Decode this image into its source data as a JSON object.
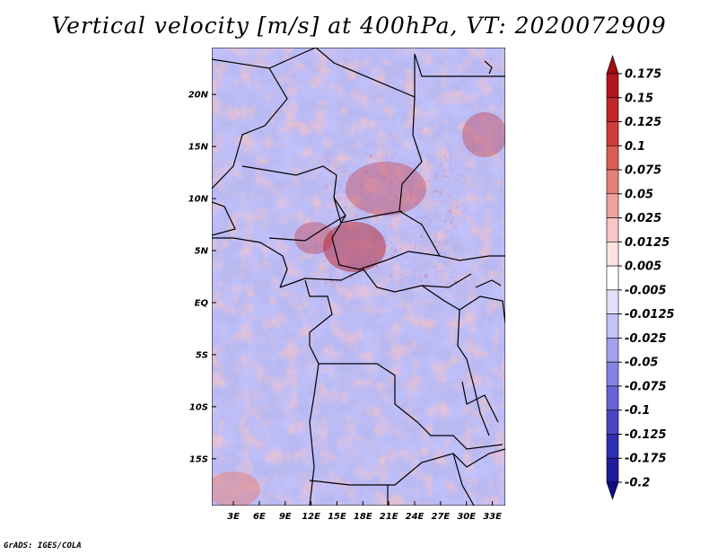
{
  "title": "Vertical velocity [m/s] at 400hPa, VT: 2020072909",
  "footer": "GrADS: IGES/COLA",
  "map": {
    "lat_labels": [
      "20N",
      "15N",
      "10N",
      "5N",
      "EQ",
      "5S",
      "10S",
      "15S"
    ],
    "lat_values": [
      20,
      15,
      10,
      5,
      0,
      -5,
      -10,
      -15
    ],
    "lon_labels": [
      "3E",
      "6E",
      "9E",
      "12E",
      "15E",
      "18E",
      "21E",
      "24E",
      "27E",
      "30E",
      "33E"
    ],
    "lon_values": [
      3,
      6,
      9,
      12,
      15,
      18,
      21,
      24,
      27,
      30,
      33
    ],
    "lon_range": [
      0.5,
      34.5
    ],
    "lat_range": [
      -19.5,
      24.5
    ]
  },
  "colorbar": {
    "labels": [
      "0.175",
      "0.15",
      "0.125",
      "0.1",
      "0.075",
      "0.05",
      "0.025",
      "0.0125",
      "0.005",
      "-0.005",
      "-0.0125",
      "-0.025",
      "-0.05",
      "-0.075",
      "-0.1",
      "-0.125",
      "-0.175",
      "-0.2"
    ],
    "colors": [
      "#a00d14",
      "#b3151d",
      "#c3262b",
      "#d03c3b",
      "#dc5c56",
      "#e67f79",
      "#efa29d",
      "#f6c6c2",
      "#fbe2df",
      "#ffffff",
      "#e0e0fb",
      "#c2c2f4",
      "#a2a2ec",
      "#8383e3",
      "#6464d6",
      "#4848c6",
      "#2f2fb2",
      "#1c1c9c",
      "#0f0f80"
    ]
  }
}
